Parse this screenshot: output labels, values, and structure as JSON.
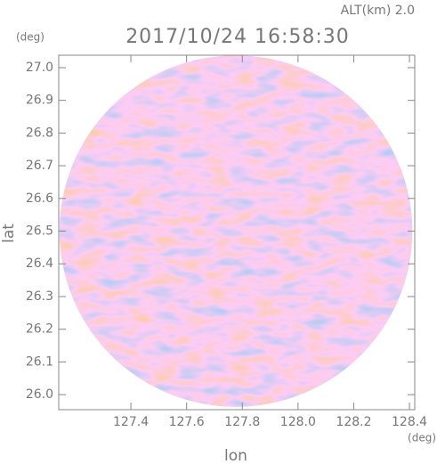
{
  "chart_data": {
    "type": "radar-ppi",
    "title": "2017/10/24 16:58:30",
    "altitude_label": "ALT(km) 2.0",
    "xlabel": "lon",
    "ylabel": "lat",
    "xunit": "(deg)",
    "yunit": "(deg)",
    "xlim": [
      127.141,
      128.419
    ],
    "ylim": [
      25.954,
      27.038
    ],
    "xticks": [
      127.4,
      127.6,
      127.8,
      {
        "value": 128.0,
        "label": "128.0"
      },
      128.2,
      128.4
    ],
    "yticks": [
      {
        "value": 26.0,
        "label": "26.0"
      },
      26.1,
      26.2,
      26.3,
      26.4,
      26.5,
      26.6,
      26.7,
      26.8,
      26.9,
      {
        "value": 27.0,
        "label": "27.0"
      }
    ],
    "disc": {
      "center_lon": 127.777,
      "center_lat": 26.5,
      "radius_lon": 0.633,
      "radius_lat": 0.537
    },
    "colors": {
      "positive": "#f4b8b8",
      "negative": "#bcbcf4"
    }
  }
}
